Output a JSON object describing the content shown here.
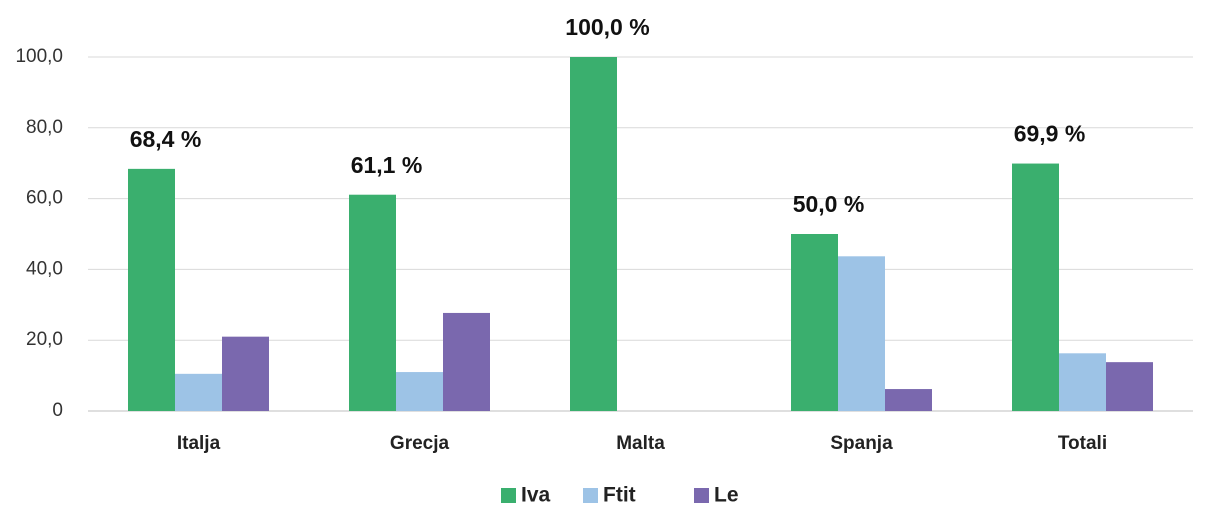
{
  "chart_data": {
    "type": "bar",
    "categories": [
      "Italja",
      "Grecja",
      "Malta",
      "Spanja",
      "Totali"
    ],
    "series": [
      {
        "name": "Iva",
        "color": "#3aaf6e",
        "values": [
          68.4,
          61.1,
          100,
          50,
          69.9
        ],
        "value_labels": [
          "68,4 %",
          "61,1 %",
          "100,0 %",
          "50,0 %",
          "69,9 %"
        ]
      },
      {
        "name": "Ftit",
        "color": "#9dc3e6",
        "values": [
          10.5,
          11,
          0,
          43.7,
          16.3
        ]
      },
      {
        "name": "Le",
        "color": "#7a68ae",
        "values": [
          21,
          27.7,
          0,
          6.2,
          13.8
        ]
      }
    ],
    "ylim": [
      0,
      100
    ],
    "yticks": [
      0,
      {
        "value": 20,
        "label": "20,0"
      },
      {
        "value": 40,
        "label": "40,0"
      },
      {
        "value": 60,
        "label": "60,0"
      },
      {
        "value": 80,
        "label": "80,0"
      },
      {
        "value": 100,
        "label": "100,0"
      }
    ],
    "grid": true,
    "legend": "bottom"
  }
}
